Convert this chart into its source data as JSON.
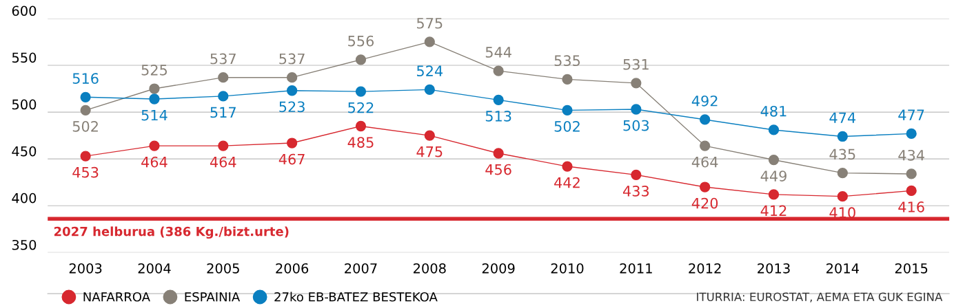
{
  "chart_data": {
    "type": "line",
    "categories": [
      "2003",
      "2004",
      "2005",
      "2006",
      "2007",
      "2008",
      "2009",
      "2010",
      "2011",
      "2012",
      "2013",
      "2014",
      "2015"
    ],
    "series": [
      {
        "name": "NAFARROA",
        "color": "#d7282f",
        "values": [
          453,
          464,
          464,
          467,
          485,
          475,
          456,
          442,
          433,
          420,
          412,
          410,
          416
        ]
      },
      {
        "name": "ESPAINIA",
        "color": "#878077",
        "values": [
          502,
          525,
          537,
          537,
          556,
          575,
          544,
          535,
          531,
          464,
          449,
          435,
          434
        ]
      },
      {
        "name": "27ko EB-BATEZ BESTEKOA",
        "color": "#0a7fc0",
        "values": [
          516,
          514,
          517,
          523,
          522,
          524,
          513,
          502,
          503,
          492,
          481,
          474,
          477
        ]
      }
    ],
    "ylim": [
      350,
      600
    ],
    "yticks": [
      350,
      400,
      450,
      500,
      550,
      600
    ],
    "grid": "y",
    "marker": "circle",
    "legend": "bottom left",
    "data_labels": true,
    "ref_lines": [
      {
        "axis": "y",
        "value": 386,
        "label": "2027 helburua (386 Kg./bizt.urte)",
        "color": "#d7282f"
      }
    ],
    "annotations": [
      "ITURRIA: EUROSTAT, AEMA ETA GUK EGINA"
    ]
  }
}
